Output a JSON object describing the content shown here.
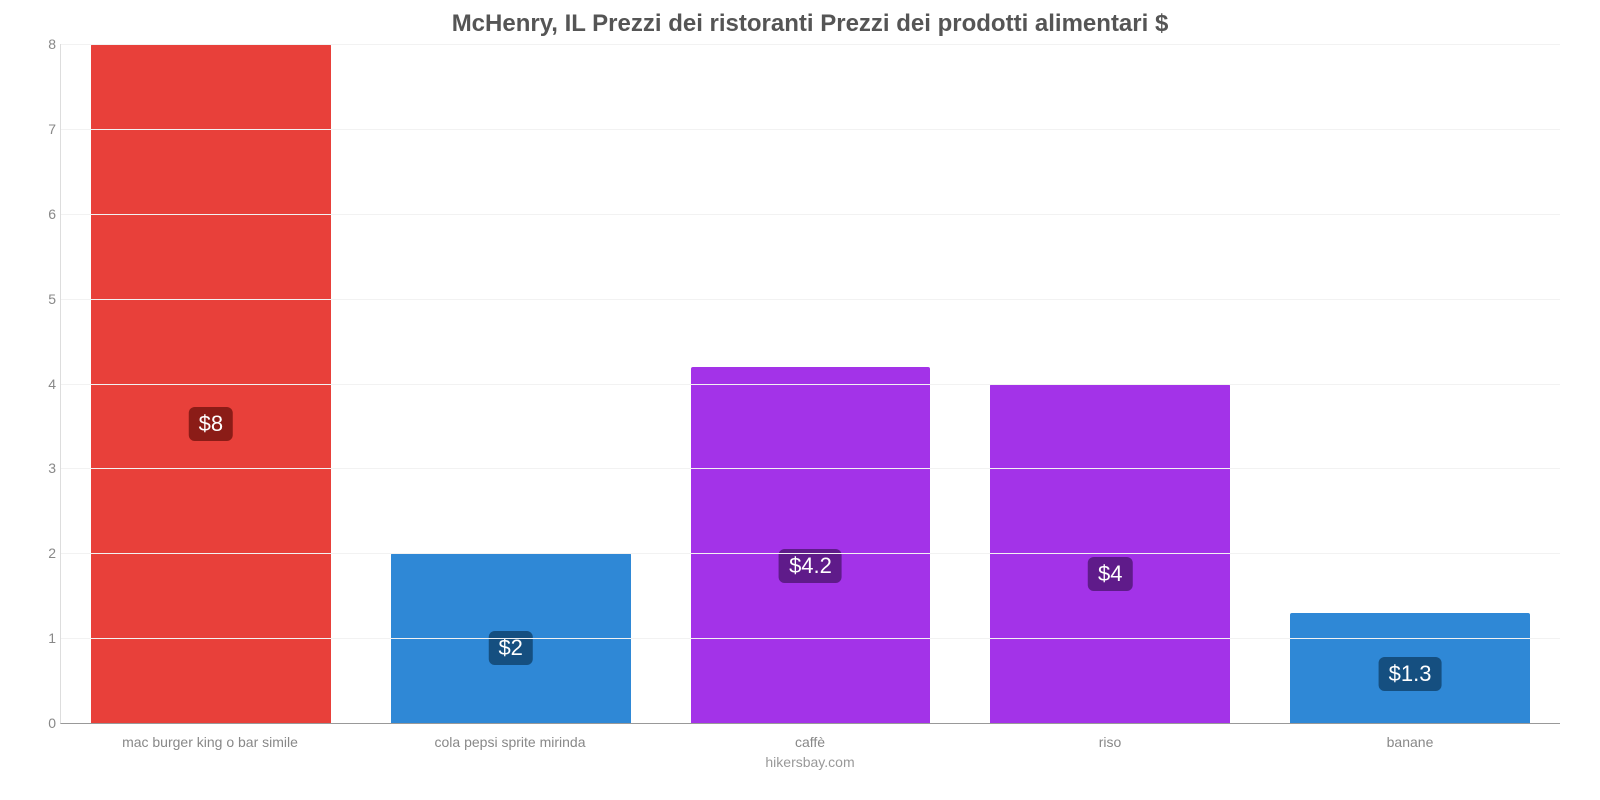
{
  "chart": {
    "type": "bar",
    "title": "McHenry, IL Prezzi dei ristoranti Prezzi dei prodotti alimentari $",
    "title_fontsize": 24,
    "title_color": "#555555",
    "footer": "hikersbay.com",
    "footer_fontsize": 14,
    "footer_color": "#999999",
    "background_color": "#ffffff",
    "grid_color": "#f2f2f2",
    "axis_color": "#dddddd",
    "ylim": [
      0,
      8
    ],
    "ytick_step": 1,
    "yticks": [
      "0",
      "1",
      "2",
      "3",
      "4",
      "5",
      "6",
      "7",
      "8"
    ],
    "ytick_fontsize": 14,
    "ytick_color": "#888888",
    "xlabel_fontsize": 14,
    "xlabel_color": "#888888",
    "bar_width_pct": 80,
    "categories": [
      "mac burger king o bar simile",
      "cola pepsi sprite mirinda",
      "caffè",
      "riso",
      "banane"
    ],
    "values": [
      8,
      2,
      4.2,
      4,
      1.3
    ],
    "value_labels": [
      "$8",
      "$2",
      "$4.2",
      "$4",
      "$1.3"
    ],
    "bar_colors": [
      "#e8403a",
      "#2f88d6",
      "#a333e8",
      "#a333e8",
      "#2f88d6"
    ],
    "label_bg_colors": [
      "#8b1c17",
      "#154f80",
      "#5f1b8a",
      "#5f1b8a",
      "#154f80"
    ],
    "label_fontsize": 22,
    "label_color": "#ffffff"
  }
}
